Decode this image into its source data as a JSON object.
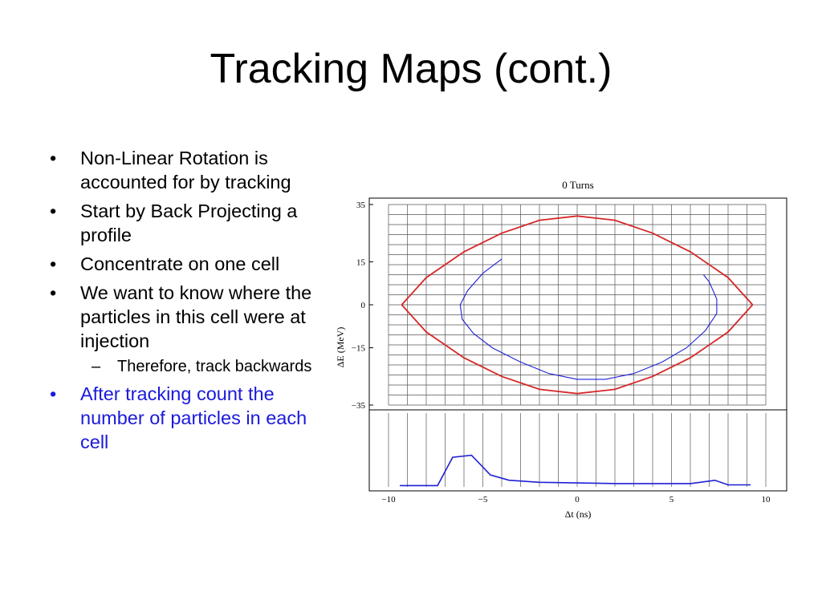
{
  "slide": {
    "title": "Tracking Maps (cont.)"
  },
  "bullets": [
    {
      "text": "Non-Linear Rotation is accounted for by tracking",
      "level": 1,
      "color": "#000000"
    },
    {
      "text": "Start by Back Projecting a profile",
      "level": 1,
      "color": "#000000"
    },
    {
      "text": "Concentrate on one cell",
      "level": 1,
      "color": "#000000"
    },
    {
      "text": "We want to know where the particles in this cell were at injection",
      "level": 1,
      "color": "#000000"
    },
    {
      "text": "Therefore, track backwards",
      "level": 2,
      "color": "#000000"
    },
    {
      "text": "After tracking count the number of particles in each cell",
      "level": 1,
      "color": "#1a1adb"
    }
  ],
  "chart_data": {
    "type": "line",
    "title": "0 Turns",
    "xlabel": "Δt (ns)",
    "ylabel": "ΔE (MeV)",
    "xlim": [
      -10,
      10
    ],
    "ylim": [
      -35,
      35
    ],
    "xticks": [
      "−10",
      "−5",
      "0",
      "5",
      "10"
    ],
    "yticks": [
      "35",
      "15",
      "0",
      "−15",
      "−35"
    ],
    "grid": true,
    "series": [
      {
        "role": "separatrix",
        "color": "#d62728",
        "upper": [
          [
            -9.3,
            0
          ],
          [
            -8,
            9.5
          ],
          [
            -6,
            18.5
          ],
          [
            -4,
            25
          ],
          [
            -2,
            29.5
          ],
          [
            0,
            31
          ],
          [
            2,
            29.5
          ],
          [
            4,
            25
          ],
          [
            6,
            18.5
          ],
          [
            8,
            9.5
          ],
          [
            9.3,
            0
          ]
        ],
        "lower": [
          [
            -9.3,
            0
          ],
          [
            -8,
            -9.5
          ],
          [
            -6,
            -18.5
          ],
          [
            -4,
            -25
          ],
          [
            -2,
            -29.5
          ],
          [
            0,
            -31
          ],
          [
            2,
            -29.5
          ],
          [
            4,
            -25
          ],
          [
            6,
            -18.5
          ],
          [
            8,
            -9.5
          ],
          [
            9.3,
            0
          ]
        ]
      },
      {
        "role": "tracked-cell",
        "color": "#1f1fd6",
        "points": [
          [
            -4,
            16
          ],
          [
            -5,
            11
          ],
          [
            -5.8,
            5
          ],
          [
            -6.2,
            0
          ],
          [
            -6.1,
            -5
          ],
          [
            -5.5,
            -10
          ],
          [
            -4.5,
            -15
          ],
          [
            -3,
            -20
          ],
          [
            -1.5,
            -24
          ],
          [
            0,
            -26
          ],
          [
            1.5,
            -26
          ],
          [
            3,
            -24
          ],
          [
            4.5,
            -20
          ],
          [
            5.8,
            -15
          ],
          [
            6.8,
            -9
          ],
          [
            7.4,
            -3
          ],
          [
            7.4,
            2
          ],
          [
            7,
            8
          ],
          [
            6.7,
            10.5
          ]
        ]
      },
      {
        "role": "profile",
        "color": "#1f1fd6",
        "points": [
          [
            -9.4,
            0.02
          ],
          [
            -7.4,
            0.02
          ],
          [
            -6.6,
            0.45
          ],
          [
            -5.6,
            0.48
          ],
          [
            -4.6,
            0.18
          ],
          [
            -3.6,
            0.1
          ],
          [
            -2,
            0.07
          ],
          [
            0,
            0.06
          ],
          [
            2,
            0.05
          ],
          [
            4,
            0.05
          ],
          [
            6,
            0.05
          ],
          [
            7.3,
            0.1
          ],
          [
            8,
            0.03
          ],
          [
            9.2,
            0.03
          ]
        ]
      }
    ]
  }
}
